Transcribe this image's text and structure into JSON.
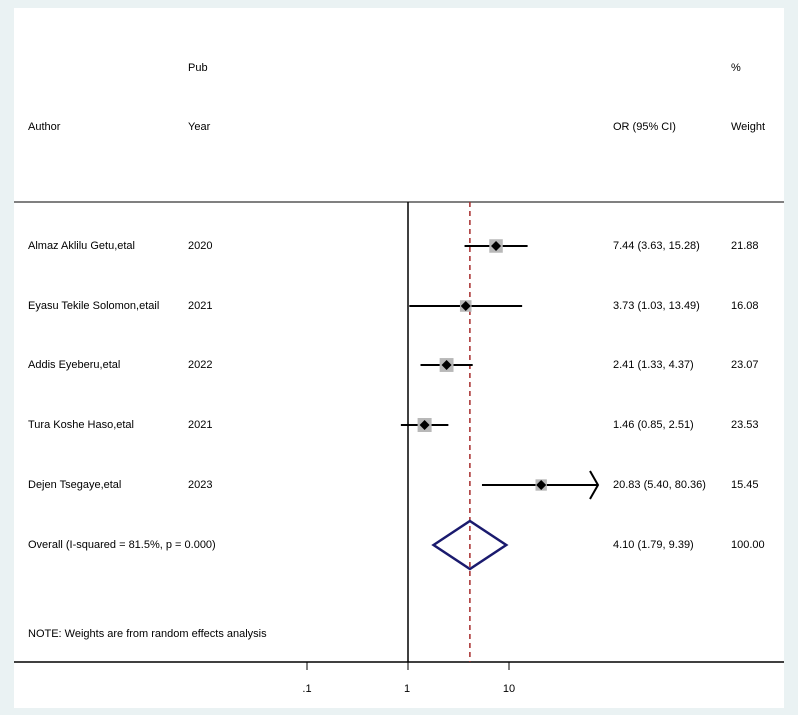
{
  "chart_data": {
    "type": "forest",
    "headers": {
      "author": "Author",
      "year_top": "Pub",
      "year_bottom": "Year",
      "estimate": "OR (95% CI)",
      "weight_top": "%",
      "weight_bottom": "Weight"
    },
    "studies": [
      {
        "author": "Almaz Aklilu Getu,etal",
        "year": "2020",
        "or": 7.44,
        "lower": 3.63,
        "upper": 15.28,
        "label": "7.44 (3.63, 15.28)",
        "weight": "21.88",
        "arrow_right": false
      },
      {
        "author": "Eyasu Tekile Solomon,etail",
        "year": "2021",
        "or": 3.73,
        "lower": 1.03,
        "upper": 13.49,
        "label": "3.73 (1.03, 13.49)",
        "weight": "16.08",
        "arrow_right": false
      },
      {
        "author": "Addis Eyeberu,etal",
        "year": "2022",
        "or": 2.41,
        "lower": 1.33,
        "upper": 4.37,
        "label": "2.41 (1.33, 4.37)",
        "weight": "23.07",
        "arrow_right": false
      },
      {
        "author": "Tura Koshe Haso,etal",
        "year": "2021",
        "or": 1.46,
        "lower": 0.85,
        "upper": 2.51,
        "label": "1.46 (0.85, 2.51)",
        "weight": "23.53",
        "arrow_right": false
      },
      {
        "author": "Dejen Tsegaye,etal",
        "year": "2023",
        "or": 20.83,
        "lower": 5.4,
        "upper": 80.36,
        "label": "20.83 (5.40, 80.36)",
        "weight": "15.45",
        "arrow_right": true
      }
    ],
    "overall": {
      "label": "Overall  (I-squared = 81.5%, p = 0.000)",
      "or": 4.1,
      "lower": 1.79,
      "upper": 9.39,
      "estimate_label": "4.10 (1.79, 9.39)",
      "weight": "100.00"
    },
    "note": "NOTE: Weights are from random effects analysis",
    "x_scale": "log",
    "x_ticks": [
      {
        "value": 0.1,
        "label": ".1"
      },
      {
        "value": 1,
        "label": "1"
      },
      {
        "value": 10,
        "label": "10"
      }
    ],
    "reference_line": 1,
    "colors": {
      "background": "#eaf2f3",
      "panel": "#ffffff",
      "box": "#b8b8b8",
      "point": "#000000",
      "ci_line": "#000000",
      "overall_line": "#a52a2a",
      "diamond": "#1a1a6e"
    }
  }
}
